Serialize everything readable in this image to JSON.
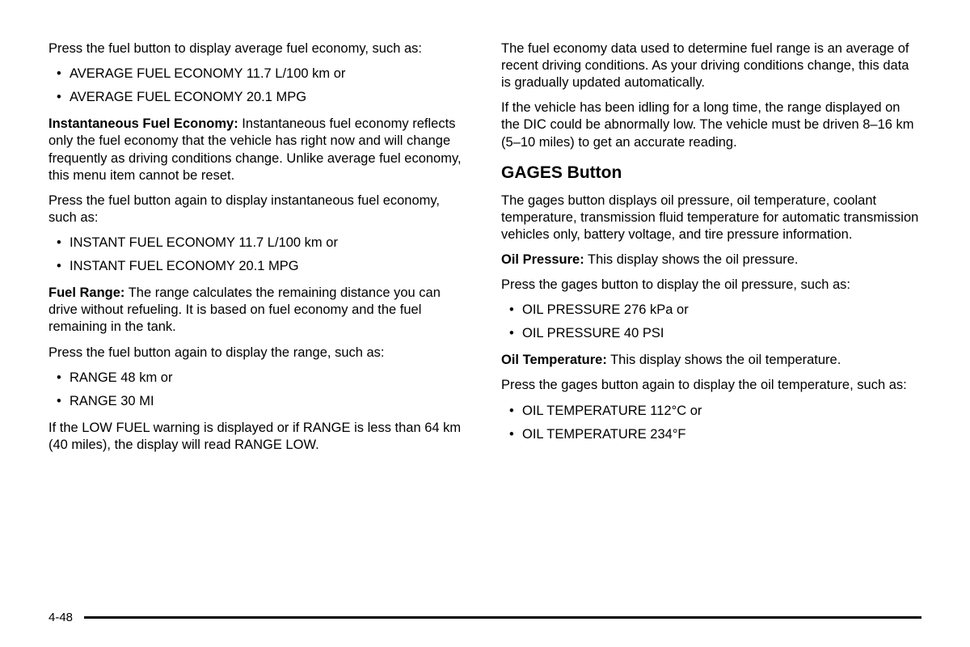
{
  "page": {
    "number": "4-48",
    "background_color": "#ffffff",
    "text_color": "#000000",
    "body_fontsize": 16.5,
    "heading_fontsize": 21,
    "rule_color": "#000000"
  },
  "left": {
    "intro1": "Press the fuel button to display average fuel economy, such as:",
    "avg_bullets": [
      "AVERAGE FUEL ECONOMY 11.7 L/100 km or",
      "AVERAGE FUEL ECONOMY 20.1 MPG"
    ],
    "inst_label": "Instantaneous Fuel Economy:",
    "inst_body": " Instantaneous fuel economy reflects only the fuel economy that the vehicle has right now and will change frequently as driving conditions change. Unlike average fuel economy, this menu item cannot be reset.",
    "intro2": "Press the fuel button again to display instantaneous fuel economy, such as:",
    "inst_bullets": [
      "INSTANT FUEL ECONOMY 11.7 L/100 km or",
      "INSTANT FUEL ECONOMY 20.1 MPG"
    ],
    "range_label": "Fuel Range:",
    "range_body": " The range calculates the remaining distance you can drive without refueling. It is based on fuel economy and the fuel remaining in the tank.",
    "intro3": "Press the fuel button again to display the range, such as:",
    "range_bullets": [
      "RANGE 48 km or",
      "RANGE 30 MI"
    ],
    "lowfuel": "If the LOW FUEL warning is displayed or if RANGE is less than 64 km (40 miles), the display will read RANGE LOW."
  },
  "right": {
    "para1": "The fuel economy data used to determine fuel range is an average of recent driving conditions. As your driving conditions change, this data is gradually updated automatically.",
    "para2": "If the vehicle has been idling for a long time, the range displayed on the DIC could be abnormally low. The vehicle must be driven 8–16 km (5–10 miles) to get an accurate reading.",
    "heading": "GAGES Button",
    "para3": "The gages button displays oil pressure, oil temperature, coolant temperature, transmission fluid temperature for automatic transmission vehicles only, battery voltage, and tire pressure information.",
    "oilpress_label": "Oil Pressure:",
    "oilpress_body": " This display shows the oil pressure.",
    "para4": "Press the gages button to display the oil pressure, such as:",
    "oilpress_bullets": [
      "OIL PRESSURE 276 kPa or",
      "OIL PRESSURE 40 PSI"
    ],
    "oiltemp_label": "Oil Temperature:",
    "oiltemp_body": " This display shows the oil temperature.",
    "para5": "Press the gages button again to display the oil temperature, such as:",
    "oiltemp_bullets": [
      "OIL TEMPERATURE 112°C or",
      "OIL TEMPERATURE 234°F"
    ]
  }
}
